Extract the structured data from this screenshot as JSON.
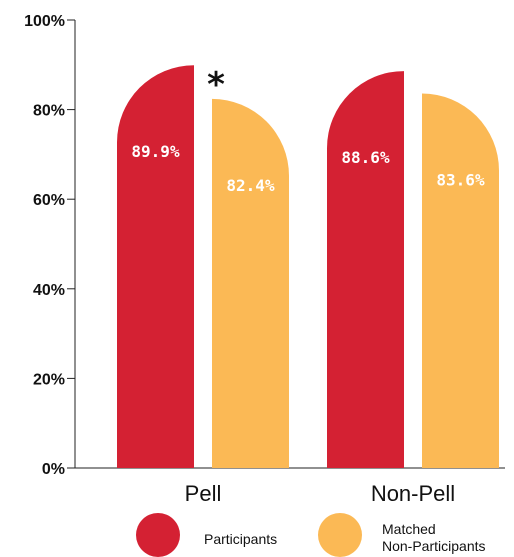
{
  "chart_data": {
    "type": "bar",
    "categories": [
      "Pell",
      "Non-Pell"
    ],
    "series": [
      {
        "name": "Participants",
        "values": [
          89.9,
          88.6
        ],
        "color": "#d42133"
      },
      {
        "name": "Matched Non-Participants",
        "values": [
          82.4,
          83.6
        ],
        "color": "#fbb955"
      }
    ],
    "value_labels": [
      [
        "89.9%",
        "88.6%"
      ],
      [
        "82.4%",
        "83.6%"
      ]
    ],
    "y_ticks": [
      "0%",
      "20%",
      "40%",
      "60%",
      "80%",
      "100%"
    ],
    "ylim": [
      0,
      100
    ],
    "significance": {
      "category": "Pell",
      "mark": "*"
    },
    "legend": {
      "placement": "bottom",
      "items": [
        {
          "label_lines": [
            "Participants"
          ],
          "color": "#d42133"
        },
        {
          "label_lines": [
            "Matched",
            "Non-Participants"
          ],
          "color": "#fbb955"
        }
      ]
    }
  }
}
